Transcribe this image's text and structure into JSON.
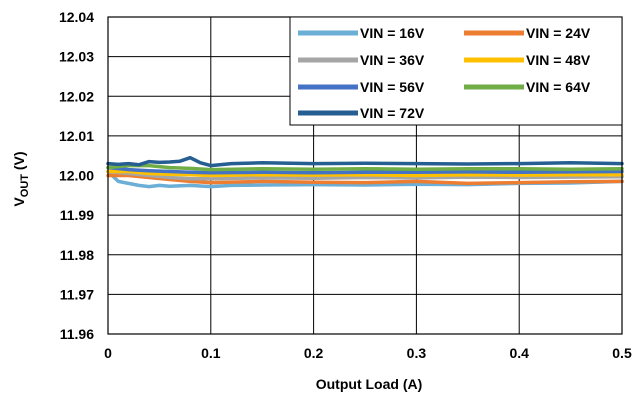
{
  "chart_data": {
    "type": "line",
    "xlabel": "Output Load (A)",
    "ylabel_main": "V",
    "ylabel_sub": "OUT",
    "ylabel_unit": " (V)",
    "xlim": [
      0,
      0.5
    ],
    "ylim": [
      11.96,
      12.04
    ],
    "x_ticks": [
      "0",
      "0.1",
      "0.2",
      "0.3",
      "0.4",
      "0.5"
    ],
    "y_ticks": [
      "11.96",
      "11.97",
      "11.98",
      "11.99",
      "12.00",
      "12.01",
      "12.02",
      "12.03",
      "12.04"
    ],
    "grid": true,
    "legend_position": "top-right",
    "series": [
      {
        "name": "VIN = 16V",
        "color": "#6baed6",
        "x": [
          0,
          0.01,
          0.02,
          0.03,
          0.04,
          0.05,
          0.06,
          0.08,
          0.1,
          0.12,
          0.15,
          0.2,
          0.25,
          0.3,
          0.35,
          0.4,
          0.45,
          0.5
        ],
        "y": [
          12.001,
          11.9985,
          11.998,
          11.9975,
          11.9972,
          11.9975,
          11.9973,
          11.9975,
          11.9972,
          11.9975,
          11.9976,
          11.9977,
          11.9976,
          11.9978,
          11.9977,
          11.998,
          11.9981,
          11.9985
        ]
      },
      {
        "name": "VIN = 24V",
        "color": "#ed7d31",
        "x": [
          0,
          0.02,
          0.04,
          0.06,
          0.08,
          0.1,
          0.15,
          0.2,
          0.25,
          0.3,
          0.35,
          0.4,
          0.45,
          0.5
        ],
        "y": [
          12.0,
          12.0,
          11.9995,
          11.999,
          11.9985,
          11.9982,
          11.9985,
          11.9983,
          11.9982,
          11.9985,
          11.998,
          11.9982,
          11.9984,
          11.9985
        ]
      },
      {
        "name": "VIN = 36V",
        "color": "#a5a5a5",
        "x": [
          0,
          0.02,
          0.04,
          0.06,
          0.08,
          0.1,
          0.15,
          0.2,
          0.25,
          0.3,
          0.35,
          0.4,
          0.45,
          0.5
        ],
        "y": [
          12.001,
          12.0005,
          12.0,
          11.9995,
          11.9992,
          11.9992,
          11.9994,
          11.9993,
          11.9995,
          11.9994,
          11.9996,
          11.9995,
          11.9996,
          11.9997
        ]
      },
      {
        "name": "VIN = 48V",
        "color": "#ffc000",
        "x": [
          0,
          0.02,
          0.04,
          0.06,
          0.08,
          0.1,
          0.15,
          0.2,
          0.25,
          0.3,
          0.35,
          0.4,
          0.45,
          0.5
        ],
        "y": [
          12.001,
          12.001,
          12.0005,
          12.0003,
          12.0002,
          12.0,
          12.0002,
          12.0001,
          12.0002,
          12.0,
          12.0002,
          12.0001,
          12.0002,
          12.0002
        ]
      },
      {
        "name": "VIN = 56V",
        "color": "#4472c4",
        "x": [
          0,
          0.02,
          0.04,
          0.06,
          0.08,
          0.1,
          0.15,
          0.2,
          0.25,
          0.3,
          0.35,
          0.4,
          0.45,
          0.5
        ],
        "y": [
          12.002,
          12.0015,
          12.0012,
          12.001,
          12.0008,
          12.0007,
          12.0008,
          12.0007,
          12.0008,
          12.0008,
          12.0009,
          12.0008,
          12.0009,
          12.001
        ]
      },
      {
        "name": "VIN = 64V",
        "color": "#70ad47",
        "x": [
          0,
          0.02,
          0.04,
          0.06,
          0.08,
          0.1,
          0.15,
          0.2,
          0.25,
          0.3,
          0.35,
          0.4,
          0.45,
          0.5
        ],
        "y": [
          12.002,
          12.0025,
          12.0025,
          12.002,
          12.0018,
          12.0015,
          12.0017,
          12.0016,
          12.0017,
          12.0016,
          12.0017,
          12.0017,
          12.0016,
          12.0017
        ]
      },
      {
        "name": "VIN = 72V",
        "color": "#255e91",
        "x": [
          0,
          0.01,
          0.02,
          0.03,
          0.04,
          0.05,
          0.06,
          0.07,
          0.08,
          0.09,
          0.1,
          0.12,
          0.15,
          0.2,
          0.25,
          0.3,
          0.35,
          0.4,
          0.45,
          0.5
        ],
        "y": [
          12.003,
          12.0028,
          12.003,
          12.0027,
          12.0035,
          12.0033,
          12.0034,
          12.0036,
          12.0045,
          12.0032,
          12.0025,
          12.003,
          12.0032,
          12.003,
          12.0031,
          12.003,
          12.0029,
          12.003,
          12.0032,
          12.003
        ]
      }
    ]
  }
}
